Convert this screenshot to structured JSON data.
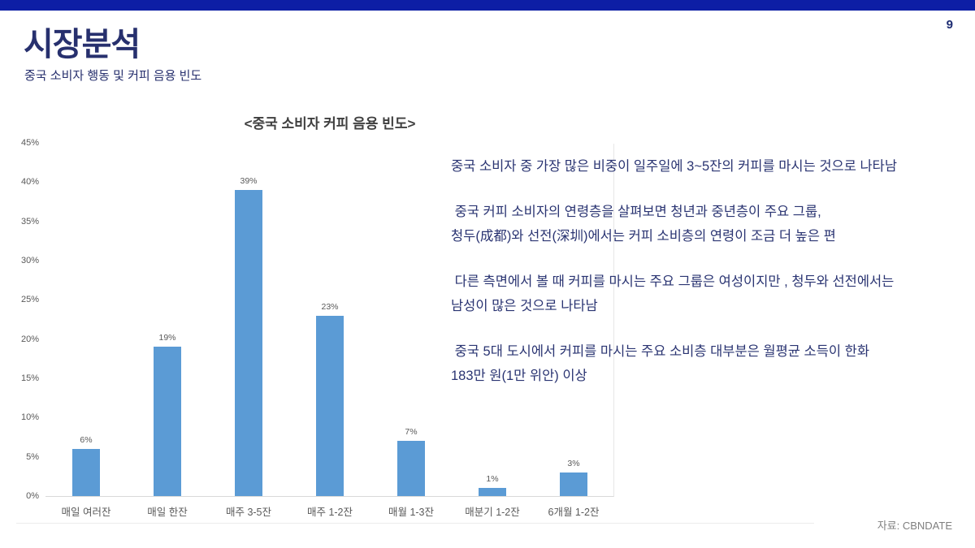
{
  "page": {
    "number": "9",
    "title": "시장분석",
    "subtitle": "중국 소비자 행동 및 커피 음용 빈도",
    "source": "자료: CBNDATE"
  },
  "chart_data": {
    "type": "bar",
    "title": "<중국 소비자 커피 음용 빈도>",
    "categories": [
      "매일 여러잔",
      "매일 한잔",
      "매주 3-5잔",
      "매주 1-2잔",
      "매월 1-3잔",
      "매분기 1-2잔",
      "6개월 1-2잔"
    ],
    "values": [
      6,
      19,
      39,
      23,
      7,
      1,
      3
    ],
    "value_labels": [
      "6%",
      "19%",
      "39%",
      "23%",
      "7%",
      "1%",
      "3%"
    ],
    "xlabel": "",
    "ylabel": "",
    "ylim": [
      0,
      45
    ],
    "ytick_step": 5,
    "ytick_labels": [
      "0%",
      "5%",
      "10%",
      "15%",
      "20%",
      "25%",
      "30%",
      "35%",
      "40%",
      "45%"
    ],
    "grid": false,
    "legend": null,
    "bar_color": "#5b9bd5"
  },
  "insights": [
    {
      "lines": [
        "중국 소비자 중 가장 많은 비중이 일주일에 3~5잔의 커피를 마시는 것으로 나타남"
      ]
    },
    {
      "lines": [
        " 중국 커피 소비자의 연령층을 살펴보면 청년과 중년층이 주요 그룹,",
        "청두(成都)와 선전(深圳)에서는 커피 소비층의 연령이 조금 더 높은 편"
      ]
    },
    {
      "lines": [
        " 다른 측면에서 볼 때 커피를 마시는 주요 그룹은 여성이지만 , 청두와 선전에서는",
        "남성이 많은 것으로 나타남"
      ]
    },
    {
      "lines": [
        " 중국 5대 도시에서 커피를 마시는 주요 소비층 대부분은 월평균 소득이 한화",
        "183만 원(1만 위안) 이상"
      ]
    }
  ],
  "colors": {
    "accent_bar": "#0d1ea5",
    "heading_text": "#27306e",
    "body_text": "#2a3472",
    "bar_fill": "#5b9bd5",
    "axis_text": "#595959",
    "chart_title_text": "#3f3f3f",
    "source_text": "#7f7f7f"
  }
}
